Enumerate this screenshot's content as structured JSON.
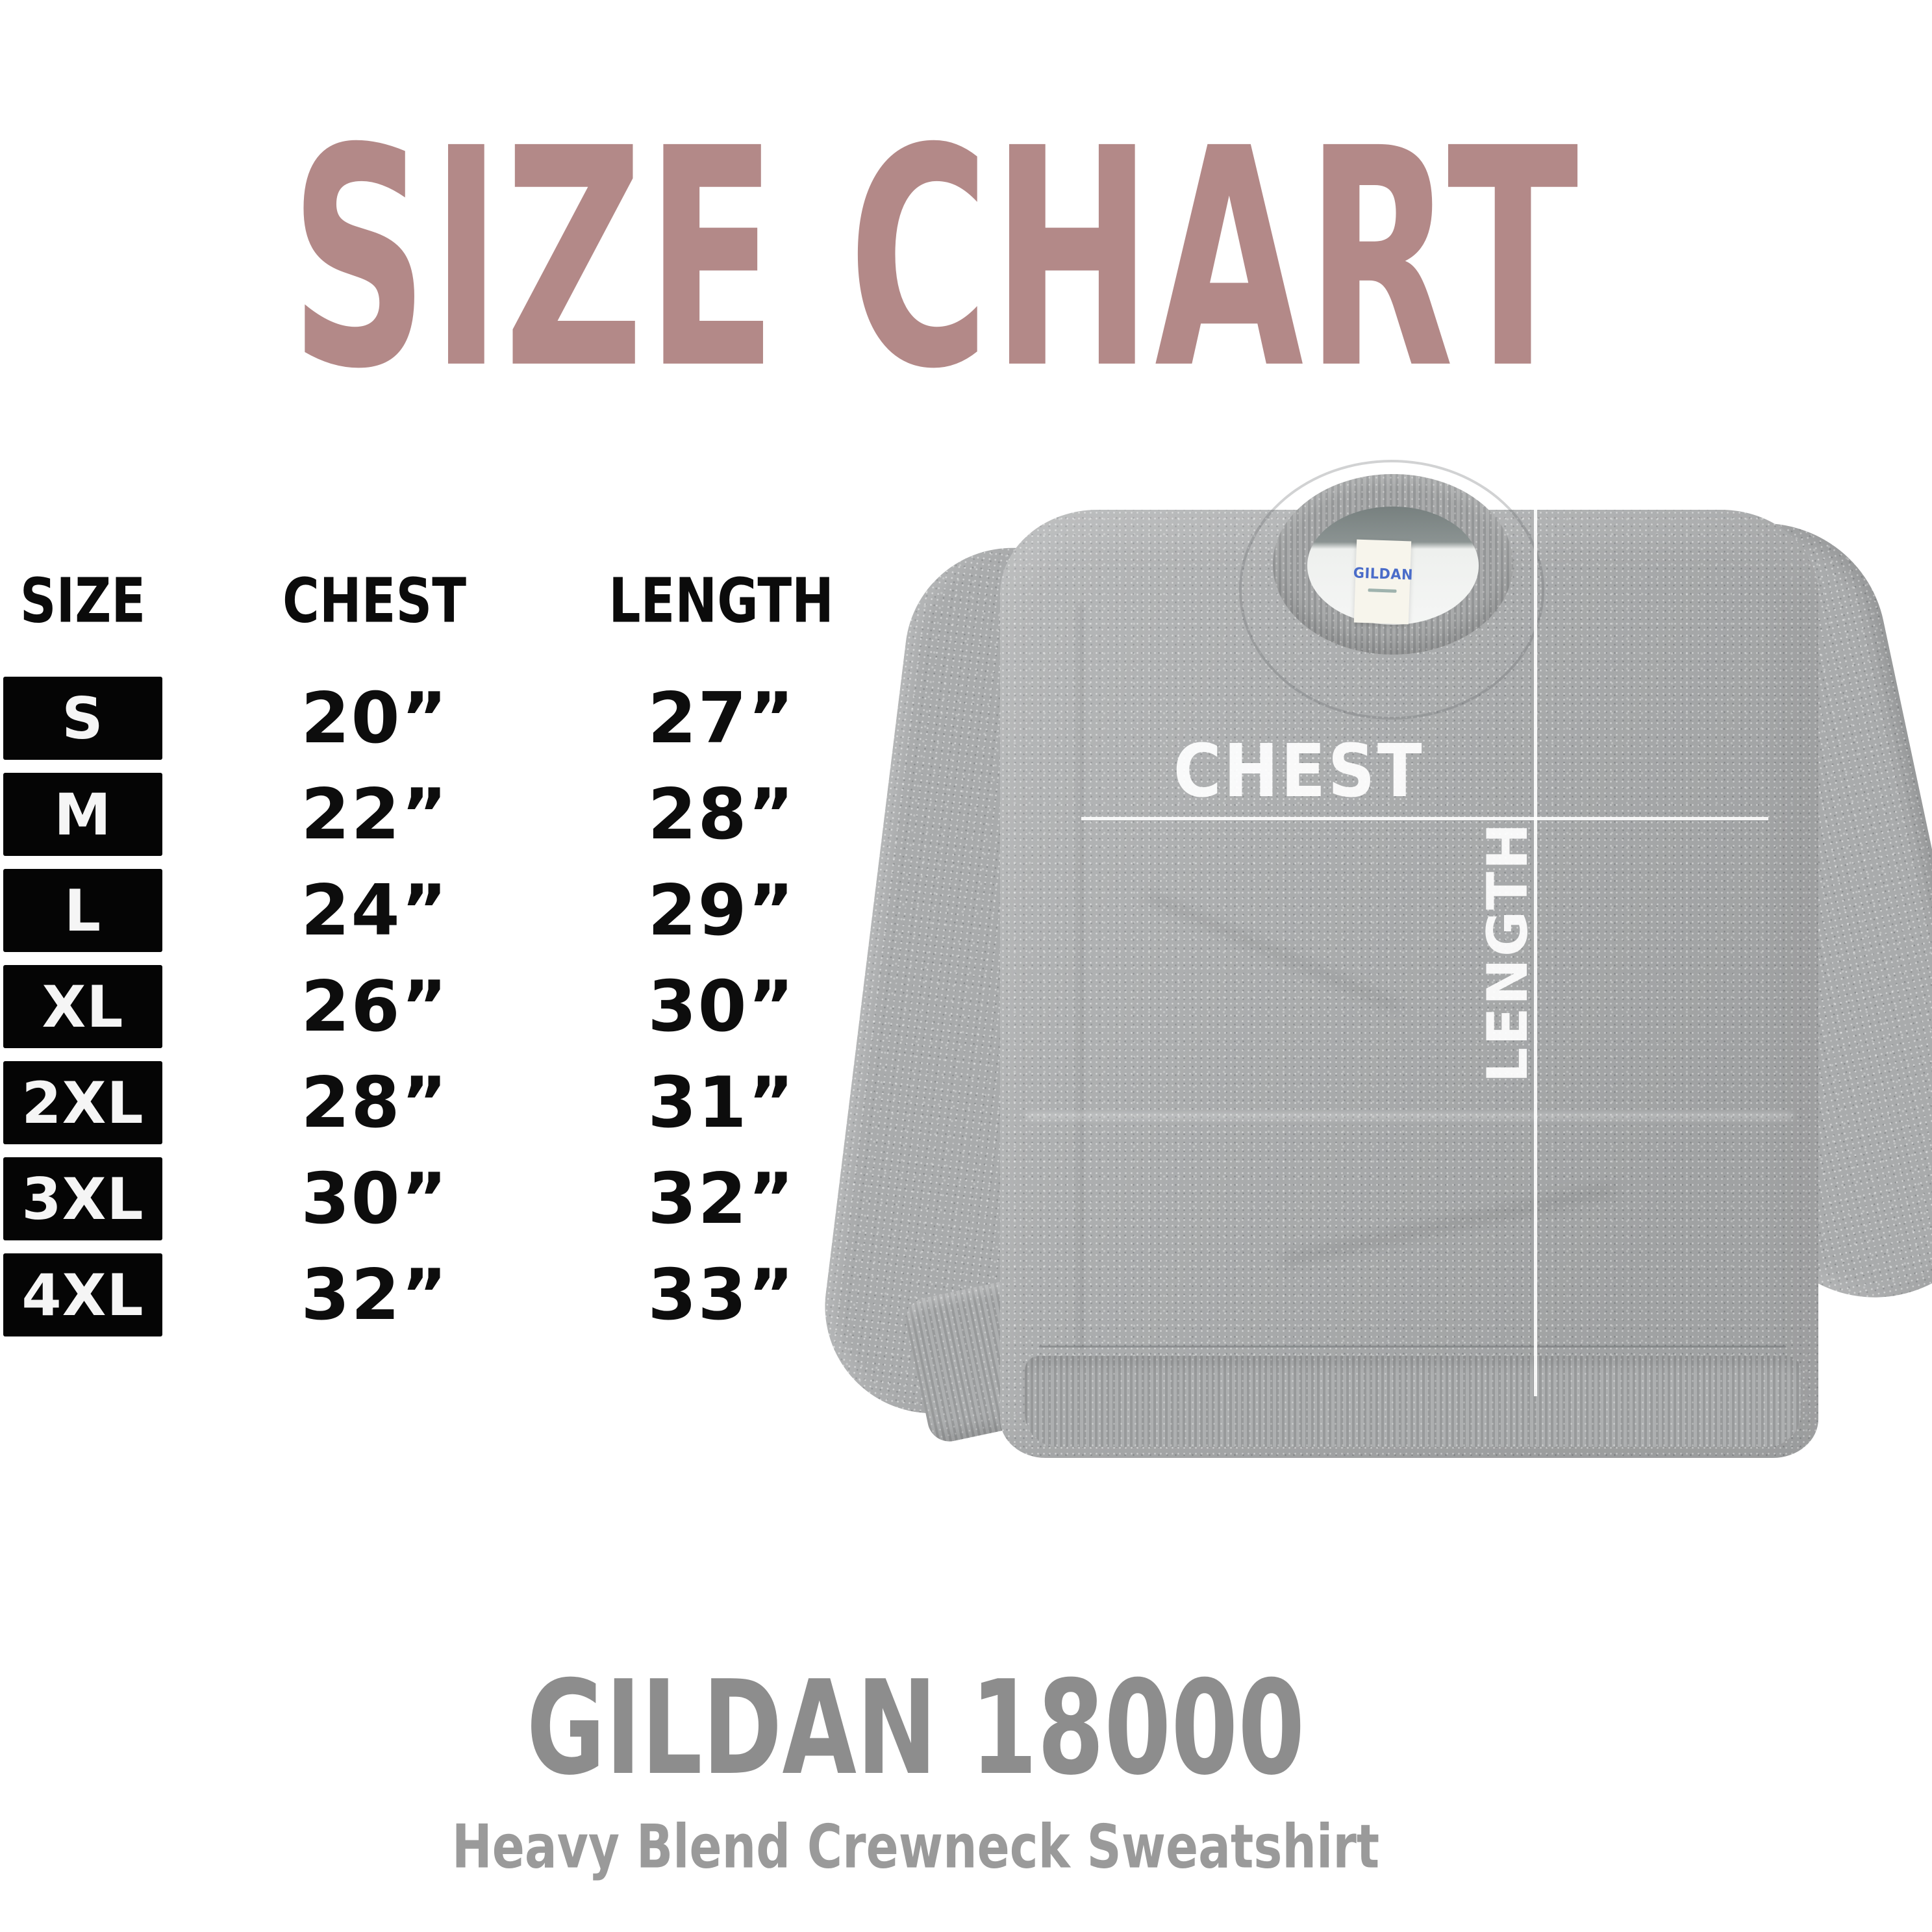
{
  "title": {
    "text": "SIZE CHART"
  },
  "table": {
    "headers": [
      "SIZE",
      "CHEST",
      "LENGTH"
    ],
    "rows": [
      {
        "size": "S",
        "chest": "20”",
        "length": "27”"
      },
      {
        "size": "M",
        "chest": "22”",
        "length": "28”"
      },
      {
        "size": "L",
        "chest": "24”",
        "length": "29”"
      },
      {
        "size": "XL",
        "chest": "26”",
        "length": "30”"
      },
      {
        "size": "2XL",
        "chest": "28”",
        "length": "31”"
      },
      {
        "size": "3XL",
        "chest": "30”",
        "length": "32”"
      },
      {
        "size": "4XL",
        "chest": "32”",
        "length": "33”"
      }
    ]
  },
  "garment": {
    "chest_label": "CHEST",
    "length_label": "LENGTH",
    "collar_tag_brand": "GILDAN"
  },
  "footer": {
    "model": "GILDAN 18000",
    "description": "Heavy Blend Crewneck Sweatshirt"
  },
  "colors": {
    "title": "#b38988",
    "size_box_bg": "#050505",
    "size_box_text": "#f5f5f5",
    "table_text": "#0d0d0d",
    "sweatshirt_gray": "#a9abac",
    "measure_overlay": "#ffffff",
    "tag_brand_blue": "#4a6cc9",
    "footer_model_gray": "#8d8d8d",
    "footer_description_gray": "#9a9a9a"
  }
}
